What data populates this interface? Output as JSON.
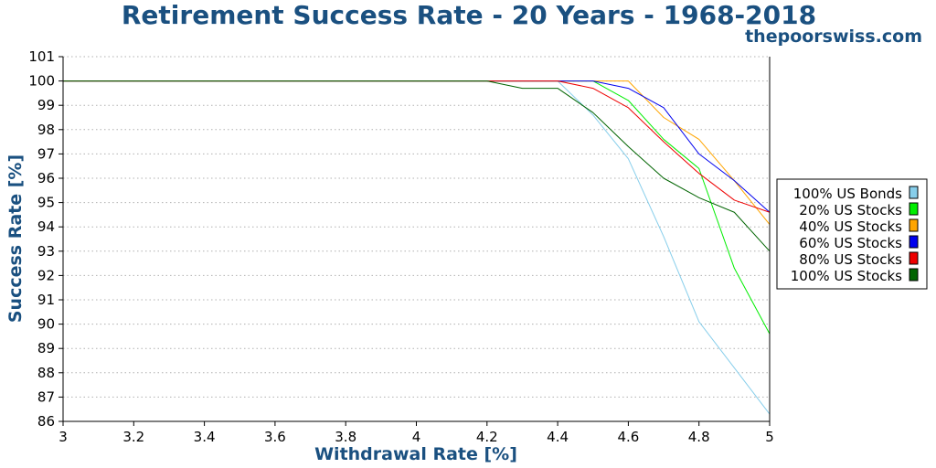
{
  "chart_data": {
    "type": "line",
    "title": "Retirement Success Rate - 20 Years - 1968-2018",
    "subtitle": "thepoorswiss.com",
    "xlabel": "Withdrawal Rate [%]",
    "ylabel": "Success Rate [%]",
    "xlim": [
      3,
      5
    ],
    "ylim": [
      86,
      101
    ],
    "xticks": [
      "3",
      "3.2",
      "3.4",
      "3.6",
      "3.8",
      "4",
      "4.2",
      "4.4",
      "4.6",
      "4.8",
      "5"
    ],
    "yticks": [
      "86",
      "87",
      "88",
      "89",
      "90",
      "91",
      "92",
      "93",
      "94",
      "95",
      "96",
      "97",
      "98",
      "99",
      "100",
      "101"
    ],
    "grid": "horizontal dotted",
    "legend_position": "right",
    "x": [
      3,
      3.1,
      3.2,
      3.3,
      3.4,
      3.5,
      3.6,
      3.7,
      3.8,
      3.9,
      4,
      4.1,
      4.2,
      4.3,
      4.4,
      4.5,
      4.6,
      4.7,
      4.8,
      4.9,
      5
    ],
    "series": [
      {
        "name": "100% US Bonds",
        "color": "#87ceeb",
        "values": [
          100,
          100,
          100,
          100,
          100,
          100,
          100,
          100,
          100,
          100,
          100,
          100,
          100,
          100,
          100,
          98.6,
          96.8,
          93.6,
          90.1,
          88.2,
          86.3
        ]
      },
      {
        "name": "20% US Stocks",
        "color": "#00ee00",
        "values": [
          100,
          100,
          100,
          100,
          100,
          100,
          100,
          100,
          100,
          100,
          100,
          100,
          100,
          100,
          100,
          100,
          99.2,
          97.6,
          96.4,
          92.3,
          89.6
        ]
      },
      {
        "name": "40% US Stocks",
        "color": "#ffa500",
        "values": [
          100,
          100,
          100,
          100,
          100,
          100,
          100,
          100,
          100,
          100,
          100,
          100,
          100,
          100,
          100,
          100,
          100,
          98.5,
          97.6,
          95.9,
          94.1
        ]
      },
      {
        "name": "60% US Stocks",
        "color": "#0000ee",
        "values": [
          100,
          100,
          100,
          100,
          100,
          100,
          100,
          100,
          100,
          100,
          100,
          100,
          100,
          100,
          100,
          100,
          99.7,
          98.9,
          97.0,
          95.9,
          94.6
        ]
      },
      {
        "name": "80% US Stocks",
        "color": "#ee0000",
        "values": [
          100,
          100,
          100,
          100,
          100,
          100,
          100,
          100,
          100,
          100,
          100,
          100,
          100,
          100,
          100,
          99.7,
          98.9,
          97.5,
          96.2,
          95.1,
          94.6
        ]
      },
      {
        "name": "100% US Stocks",
        "color": "#006400",
        "values": [
          100,
          100,
          100,
          100,
          100,
          100,
          100,
          100,
          100,
          100,
          100,
          100,
          100,
          99.7,
          99.7,
          98.7,
          97.3,
          96.0,
          95.2,
          94.6,
          93.0
        ]
      }
    ]
  }
}
